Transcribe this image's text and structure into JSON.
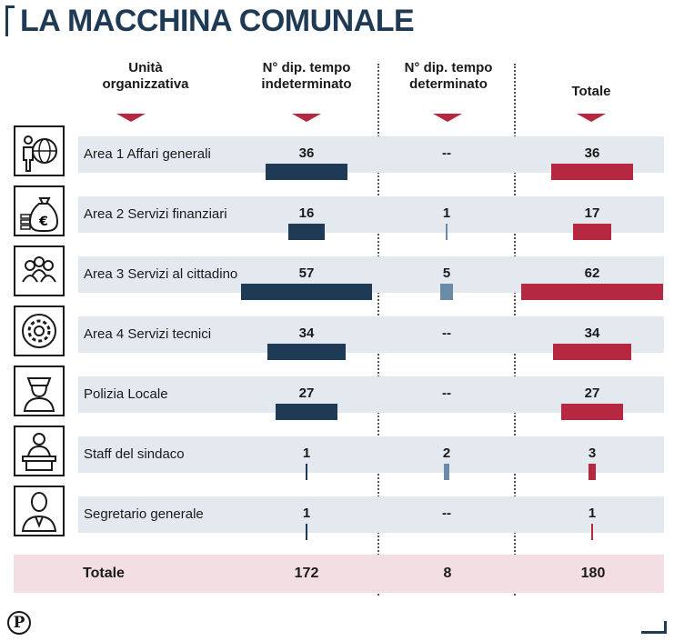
{
  "title": "LA MACCHINA COMUNALE",
  "headers": {
    "unit": "Unità\norganizzativa",
    "indeterminato": "N° dip. tempo\nindeterminato",
    "determinato": "N° dip. tempo\ndeterminato",
    "totale": "Totale"
  },
  "colors": {
    "indeterminato": "#1f3a55",
    "determinato": "#6b8aa6",
    "totale": "#b5283f",
    "row_bg": "#e4e9ef",
    "total_bg": "#f3dfe3"
  },
  "rows": [
    {
      "icon": "globe-person-icon",
      "label": "Area 1 Affari generali",
      "ind": "36",
      "det": "--",
      "tot": "36"
    },
    {
      "icon": "money-bag-icon",
      "label": "Area 2 Servizi finanziari",
      "ind": "16",
      "det": "1",
      "tot": "17"
    },
    {
      "icon": "people-group-icon",
      "label": "Area 3 Servizi al cittadino",
      "ind": "57",
      "det": "5",
      "tot": "62"
    },
    {
      "icon": "gear-icon",
      "label": "Area 4 Servizi tecnici",
      "ind": "34",
      "det": "--",
      "tot": "34"
    },
    {
      "icon": "police-officer-icon",
      "label": "Polizia Locale",
      "ind": "27",
      "det": "--",
      "tot": "27"
    },
    {
      "icon": "podium-speaker-icon",
      "label": "Staff del sindaco",
      "ind": "1",
      "det": "2",
      "tot": "3"
    },
    {
      "icon": "person-suit-icon",
      "label": "Segretario generale",
      "ind": "1",
      "det": "--",
      "tot": "1"
    }
  ],
  "totals": {
    "label": "Totale",
    "ind": "172",
    "det": "8",
    "tot": "180"
  },
  "logo": "P",
  "chart_data": {
    "type": "table",
    "categories": [
      "Area 1 Affari generali",
      "Area 2 Servizi finanziari",
      "Area 3 Servizi al cittadino",
      "Area 4 Servizi tecnici",
      "Polizia Locale",
      "Staff del sindaco",
      "Segretario generale"
    ],
    "series": [
      {
        "name": "N° dip. tempo indeterminato",
        "values": [
          36,
          16,
          57,
          34,
          27,
          1,
          1
        ]
      },
      {
        "name": "N° dip. tempo determinato",
        "values": [
          0,
          1,
          5,
          0,
          0,
          2,
          0
        ]
      },
      {
        "name": "Totale",
        "values": [
          36,
          17,
          62,
          34,
          27,
          3,
          1
        ]
      }
    ],
    "totals": [
      172,
      8,
      180
    ],
    "title": "LA MACCHINA COMUNALE"
  }
}
